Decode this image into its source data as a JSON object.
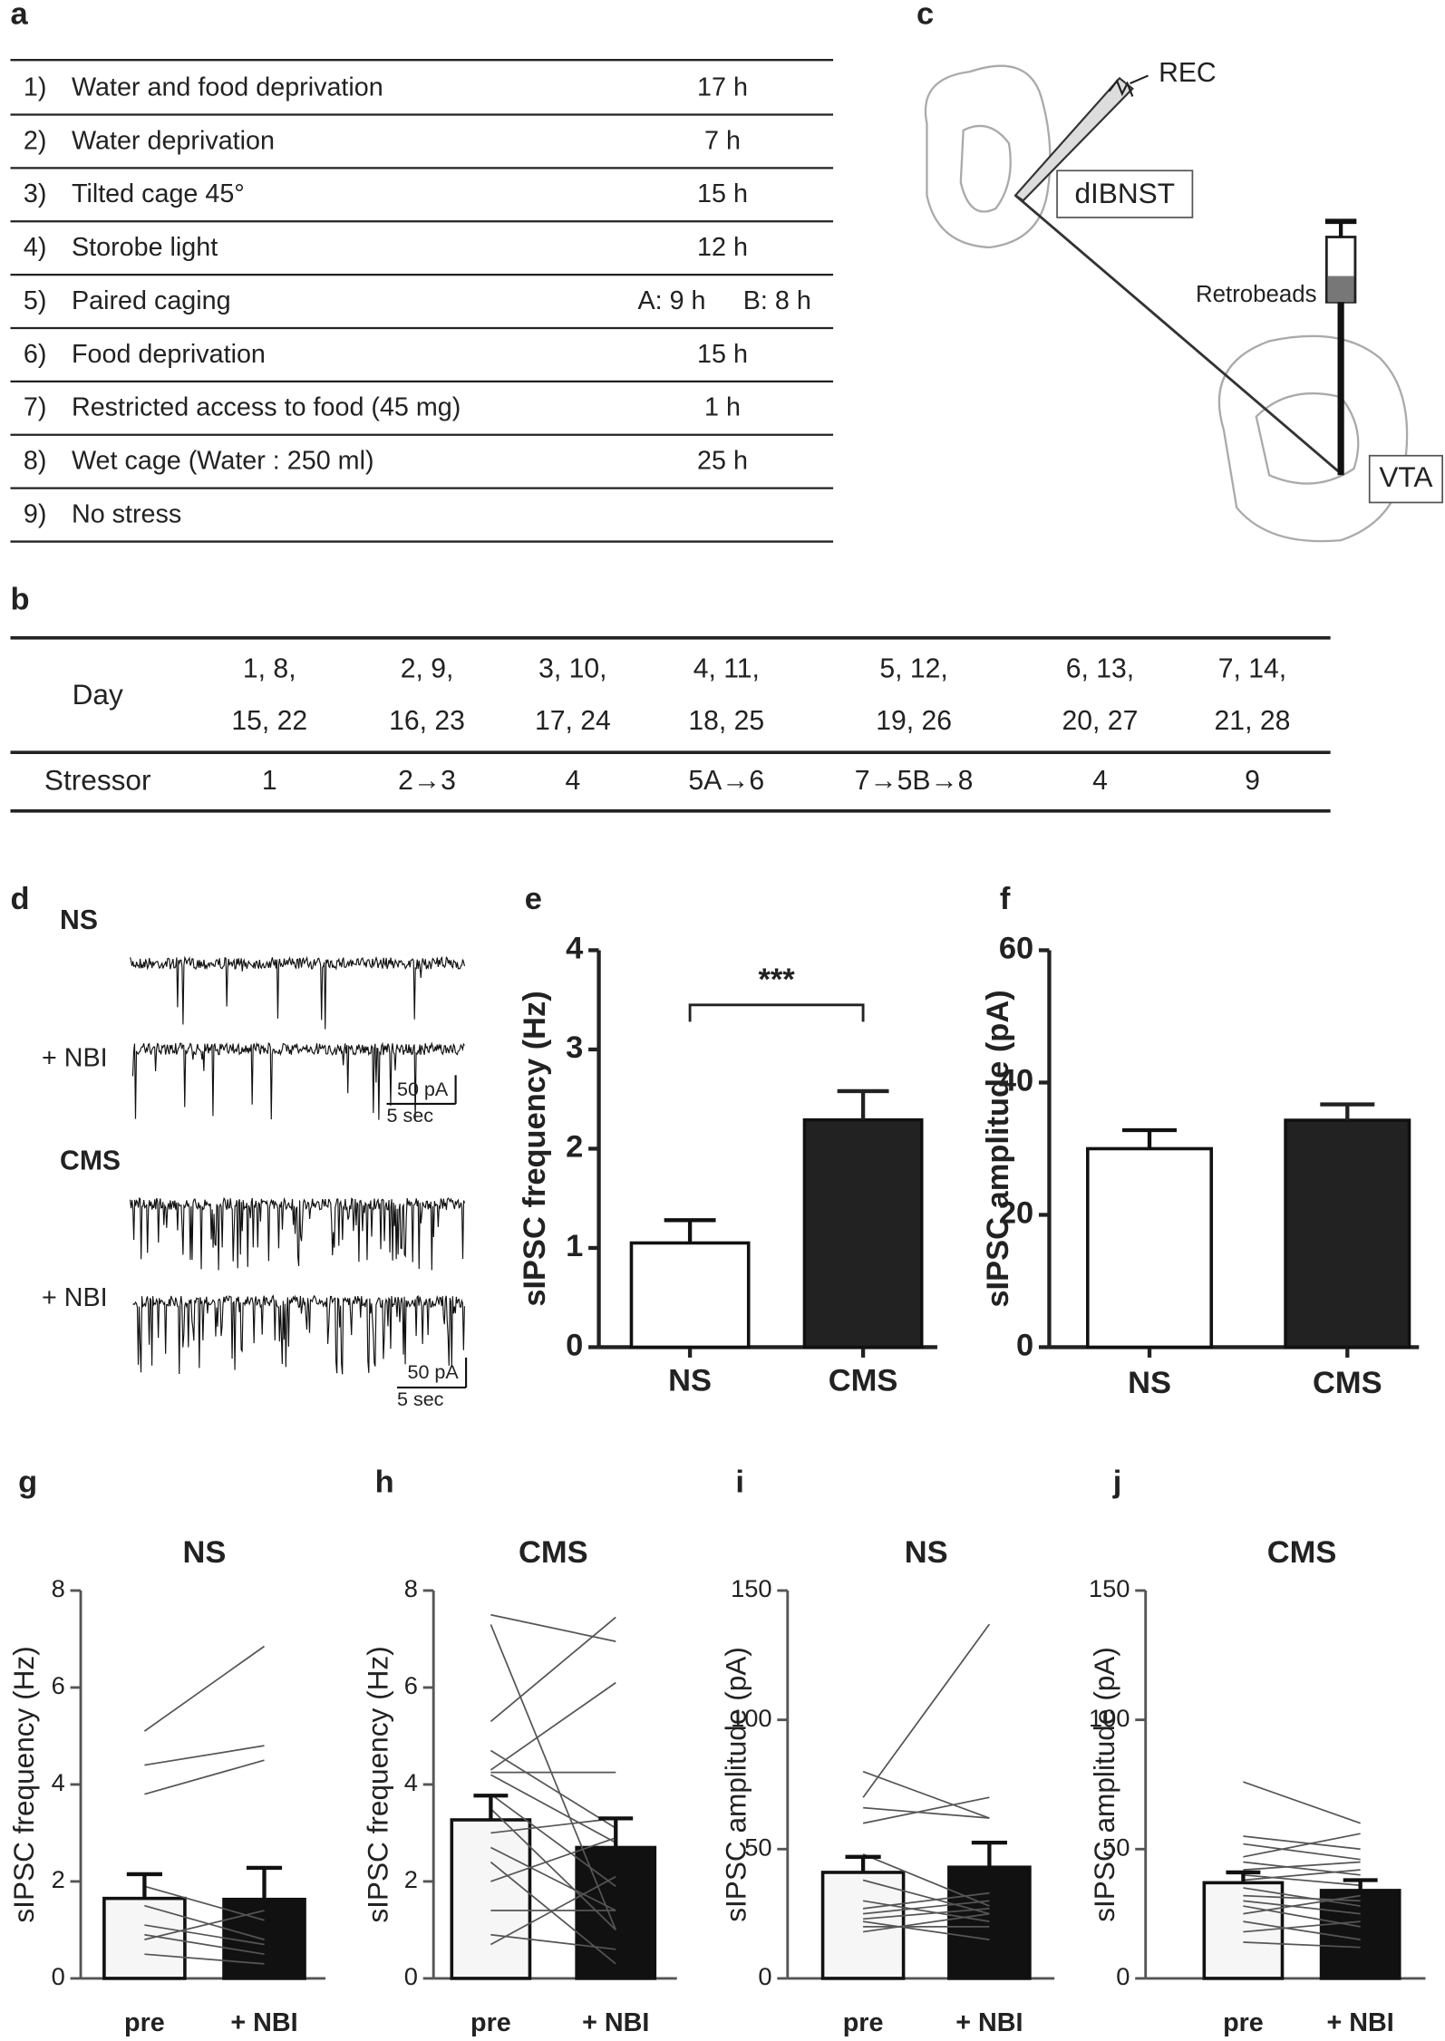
{
  "panel_a": {
    "label": "a",
    "rows": [
      [
        "1)",
        "Water and food deprivation",
        "17 h"
      ],
      [
        "2)",
        "Water deprivation",
        "7 h"
      ],
      [
        "3)",
        "Tilted cage 45°",
        "15 h"
      ],
      [
        "4)",
        "Storobe light",
        "12 h"
      ],
      [
        "5)",
        "Paired caging",
        "A: 9 h",
        "B: 8 h"
      ],
      [
        "6)",
        "Food deprivation",
        "15 h"
      ],
      [
        "7)",
        "Restricted access to food (45 mg)",
        "1 h"
      ],
      [
        "8)",
        "Wet cage (Water : 250 ml)",
        "25 h"
      ],
      [
        "9)",
        "No stress"
      ]
    ]
  },
  "panel_b": {
    "label": "b",
    "day_label": "Day",
    "days": [
      [
        "1, 8,",
        "15, 22"
      ],
      [
        "2, 9,",
        "16, 23"
      ],
      [
        "3, 10,",
        "17, 24"
      ],
      [
        "4, 11,",
        "18, 25"
      ],
      [
        "5, 12,",
        "19, 26"
      ],
      [
        "6, 13,",
        "20, 27"
      ],
      [
        "7, 14,",
        "21, 28"
      ]
    ],
    "stressor_label": "Stressor",
    "stressors": [
      "1",
      "2→3",
      "4",
      "5A→6",
      "7→5B→8",
      "4",
      "9"
    ]
  },
  "panel_c": {
    "label": "c",
    "rec": "REC",
    "region": "dIBNST",
    "tracer": "Retrobeads",
    "target": "VTA"
  },
  "panel_d": {
    "label": "d",
    "groups": [
      {
        "name": "NS",
        "treatment": "+ NBI",
        "scale_amplitude": "50 pA",
        "scale_time": "5 sec"
      },
      {
        "name": "CMS",
        "treatment": "+ NBI",
        "scale_amplitude": "50 pA",
        "scale_time": "5 sec"
      }
    ]
  },
  "chart_data": [
    {
      "type": "bar",
      "panel": "e",
      "y_label": "sIPSC frequency (Hz)",
      "categories": [
        "NS",
        "CMS"
      ],
      "values": [
        1.05,
        2.29
      ],
      "errors": [
        0.23,
        0.29
      ],
      "colors": [
        "#ffffff",
        "#222222"
      ],
      "ylim": [
        0,
        4
      ],
      "yticks": [
        0,
        1,
        2,
        3,
        4
      ],
      "significance": "***"
    },
    {
      "type": "bar",
      "panel": "f",
      "y_label": "sIPSC amplitude (pA)",
      "categories": [
        "NS",
        "CMS"
      ],
      "values": [
        30,
        34.3
      ],
      "errors": [
        2.8,
        2.4
      ],
      "colors": [
        "#ffffff",
        "#222222"
      ],
      "ylim": [
        0,
        60
      ],
      "yticks": [
        0,
        20,
        40,
        60
      ]
    },
    {
      "type": "paired",
      "panel": "g",
      "title": "NS",
      "y_label": "sIPSC frequency (Hz)",
      "categories": [
        "pre",
        "+ NBI"
      ],
      "values": [
        1.65,
        1.63
      ],
      "errors": [
        0.5,
        0.65
      ],
      "colors": [
        "#f6f6f6",
        "#111111"
      ],
      "ylim": [
        0,
        8
      ],
      "yticks": [
        0,
        2,
        4,
        6,
        8
      ],
      "pairs": [
        [
          5.1,
          6.85
        ],
        [
          4.4,
          4.8
        ],
        [
          3.8,
          4.5
        ],
        [
          1.9,
          1.2
        ],
        [
          1.5,
          0.8
        ],
        [
          1.1,
          0.7
        ],
        [
          0.9,
          0.5
        ],
        [
          0.8,
          1.4
        ],
        [
          0.5,
          0.3
        ]
      ]
    },
    {
      "type": "paired",
      "panel": "h",
      "title": "CMS",
      "y_label": "sIPSC frequency (Hz)",
      "categories": [
        "pre",
        "+ NBI"
      ],
      "values": [
        3.27,
        2.7
      ],
      "errors": [
        0.5,
        0.6
      ],
      "colors": [
        "#f6f6f6",
        "#111111"
      ],
      "ylim": [
        0,
        8
      ],
      "yticks": [
        0,
        2,
        4,
        6,
        8
      ],
      "pairs": [
        [
          7.5,
          6.95
        ],
        [
          7.3,
          1.0
        ],
        [
          5.3,
          7.45
        ],
        [
          4.7,
          3.1
        ],
        [
          4.3,
          6.1
        ],
        [
          4.25,
          4.25
        ],
        [
          4.2,
          2.8
        ],
        [
          3.8,
          1.9
        ],
        [
          3.5,
          1.0
        ],
        [
          3.0,
          3.3
        ],
        [
          2.7,
          1.4
        ],
        [
          2.4,
          0.3
        ],
        [
          2.0,
          2.9
        ],
        [
          1.4,
          1.4
        ],
        [
          0.9,
          0.6
        ],
        [
          0.7,
          2.1
        ]
      ]
    },
    {
      "type": "paired",
      "panel": "i",
      "title": "NS",
      "y_label": "sIPSC amplitude (pA)",
      "categories": [
        "pre",
        "+ NBI"
      ],
      "values": [
        41,
        43
      ],
      "errors": [
        6,
        9.5
      ],
      "colors": [
        "#f6f6f6",
        "#111111"
      ],
      "ylim": [
        0,
        150
      ],
      "yticks": [
        0,
        50,
        100,
        150
      ],
      "pairs": [
        [
          80,
          62
        ],
        [
          70,
          137
        ],
        [
          66,
          62
        ],
        [
          60,
          70
        ],
        [
          48,
          28
        ],
        [
          38,
          25
        ],
        [
          30,
          22
        ],
        [
          27,
          33
        ],
        [
          25,
          30
        ],
        [
          23,
          27
        ],
        [
          22,
          15
        ],
        [
          20,
          20
        ],
        [
          18,
          25
        ]
      ]
    },
    {
      "type": "paired",
      "panel": "j",
      "title": "CMS",
      "y_label": "sIPSC amplitude (pA)",
      "categories": [
        "pre",
        "+ NBI"
      ],
      "values": [
        37,
        34
      ],
      "errors": [
        4,
        4
      ],
      "colors": [
        "#f6f6f6",
        "#111111"
      ],
      "ylim": [
        0,
        150
      ],
      "yticks": [
        0,
        50,
        100,
        150
      ],
      "pairs": [
        [
          76,
          60
        ],
        [
          55,
          50
        ],
        [
          52,
          46
        ],
        [
          47,
          56
        ],
        [
          45,
          40
        ],
        [
          42,
          45
        ],
        [
          40,
          36
        ],
        [
          38,
          42
        ],
        [
          35,
          28
        ],
        [
          32,
          30
        ],
        [
          30,
          25
        ],
        [
          28,
          20
        ],
        [
          25,
          32
        ],
        [
          22,
          15
        ],
        [
          18,
          22
        ],
        [
          14,
          12
        ]
      ]
    }
  ]
}
